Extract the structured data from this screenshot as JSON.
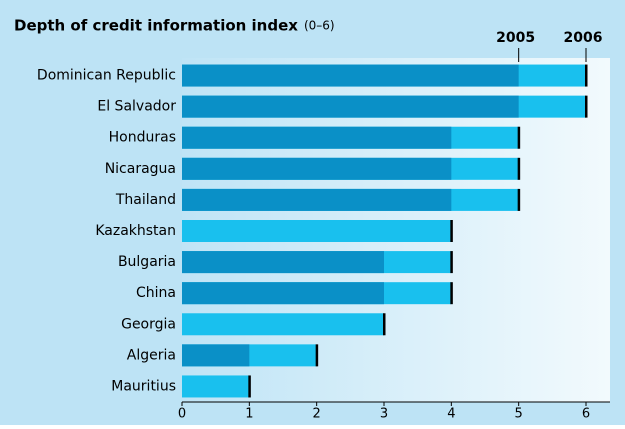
{
  "chart_data": {
    "type": "bar",
    "orientation": "horizontal",
    "overlap": true,
    "title": "Depth of credit information index",
    "subtitle": "(0–6)",
    "categories": [
      "Dominican Republic",
      "El Salvador",
      "Honduras",
      "Nicaragua",
      "Thailand",
      "Kazakhstan",
      "Bulgaria",
      "China",
      "Georgia",
      "Algeria",
      "Mauritius"
    ],
    "series": [
      {
        "name": "2006",
        "color": "#19c0ee",
        "values": [
          6,
          6,
          5,
          5,
          5,
          4,
          4,
          4,
          3,
          2,
          1
        ]
      },
      {
        "name": "2005",
        "color": "#0a90c7",
        "values": [
          5,
          5,
          4,
          4,
          4,
          0,
          3,
          3,
          0,
          1,
          0
        ]
      }
    ],
    "xlim": [
      0,
      6
    ],
    "xticks": [
      0,
      1,
      2,
      3,
      4,
      5,
      6
    ]
  }
}
